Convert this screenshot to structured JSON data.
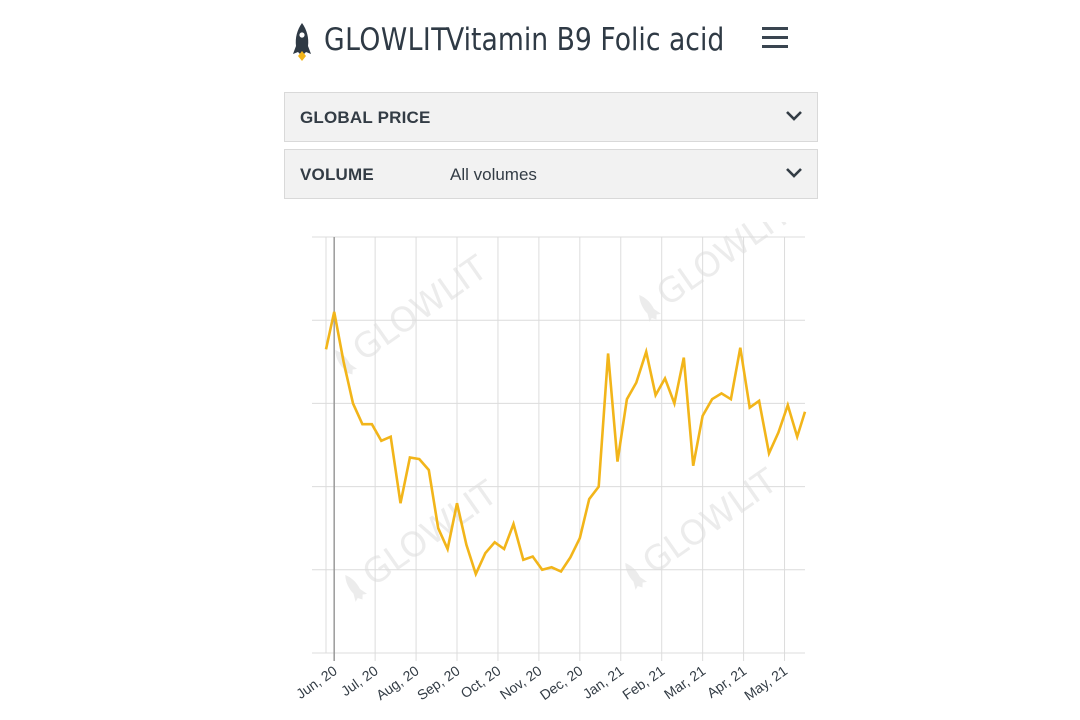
{
  "header": {
    "brand": "GLOWLIT",
    "title": "Vitamin B9 Folic acid",
    "logo_icon": "rocket-logo-icon",
    "menu_icon": "hamburger-menu-icon"
  },
  "dropdowns": [
    {
      "label": "GLOBAL PRICE",
      "value": ""
    },
    {
      "label": "VOLUME",
      "value": "All volumes"
    }
  ],
  "colors": {
    "line": "#f2b51a",
    "grid": "#dcdcdc",
    "text": "#333c45",
    "watermark": "#ececec"
  },
  "watermark_text": "GLOWLIT",
  "chart_data": {
    "type": "line",
    "x_tick_labels": [
      "Jun, 20",
      "Jul, 20",
      "Aug, 20",
      "Sep, 20",
      "Oct, 20",
      "Nov, 20",
      "Dec, 20",
      "Jan, 21",
      "Feb, 21",
      "Mar, 21",
      "Apr, 21",
      "May, 21"
    ],
    "x_range": [
      -0.2,
      11.5
    ],
    "y_range": [
      0,
      5
    ],
    "y_tick_labels_shown": false,
    "grid": true,
    "series": [
      {
        "x": [
          -0.2,
          0.0,
          0.23,
          0.46,
          0.69,
          0.92,
          1.15,
          1.38,
          1.62,
          1.85,
          2.08,
          2.31,
          2.54,
          2.77,
          3.0,
          3.23,
          3.46,
          3.69,
          3.92,
          4.15,
          4.38,
          4.62,
          4.85,
          5.08,
          5.31,
          5.54,
          5.77,
          6.0,
          6.23,
          6.46,
          6.69,
          6.92,
          7.15,
          7.38,
          7.62,
          7.85,
          8.08,
          8.31,
          8.54,
          8.77,
          9.0,
          9.23,
          9.46,
          9.69,
          9.92,
          10.15,
          10.38,
          10.62,
          10.85,
          11.08,
          11.31,
          11.5
        ],
        "values": [
          3.65,
          4.1,
          3.5,
          3.0,
          2.75,
          2.75,
          2.55,
          2.6,
          1.8,
          2.35,
          2.33,
          2.2,
          1.5,
          1.25,
          1.8,
          1.3,
          0.95,
          1.2,
          1.33,
          1.25,
          1.55,
          1.12,
          1.16,
          1.0,
          1.03,
          0.98,
          1.15,
          1.38,
          1.85,
          2.0,
          3.6,
          2.3,
          3.05,
          3.25,
          3.62,
          3.1,
          3.3,
          3.0,
          3.55,
          2.25,
          2.85,
          3.05,
          3.12,
          3.05,
          3.67,
          2.95,
          3.03,
          2.4,
          2.65,
          2.98,
          2.6,
          2.9
        ]
      }
    ]
  }
}
